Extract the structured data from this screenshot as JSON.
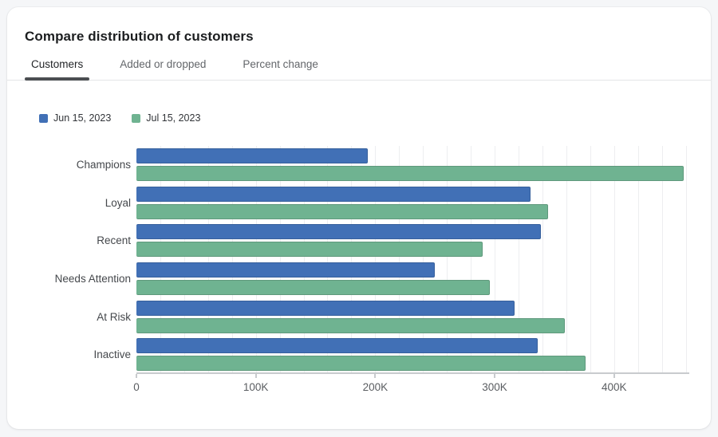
{
  "header": {
    "title": "Compare distribution of customers"
  },
  "tabs": [
    {
      "label": "Customers",
      "active": true
    },
    {
      "label": "Added or dropped",
      "active": false
    },
    {
      "label": "Percent change",
      "active": false
    }
  ],
  "chart_data": {
    "type": "bar",
    "orientation": "horizontal",
    "categories": [
      "Champions",
      "Loyal",
      "Recent",
      "Needs Attention",
      "At Risk",
      "Inactive"
    ],
    "series": [
      {
        "name": "Jun 15, 2023",
        "color": "#4170b6",
        "values": [
          194000,
          330000,
          339000,
          250000,
          317000,
          336000
        ]
      },
      {
        "name": "Jul 15, 2023",
        "color": "#6fb391",
        "values": [
          458000,
          345000,
          290000,
          296000,
          359000,
          376000
        ]
      }
    ],
    "title": "",
    "xlabel": "",
    "ylabel": "",
    "xlim": [
      0,
      463000
    ],
    "x_ticks": [
      {
        "label": "0",
        "value": 0
      },
      {
        "label": "100K",
        "value": 100000
      },
      {
        "label": "200K",
        "value": 200000
      },
      {
        "label": "300K",
        "value": 300000
      },
      {
        "label": "400K",
        "value": 400000
      }
    ],
    "minor_grid_step": 20000,
    "grid": true,
    "legend_position": "top-left"
  }
}
